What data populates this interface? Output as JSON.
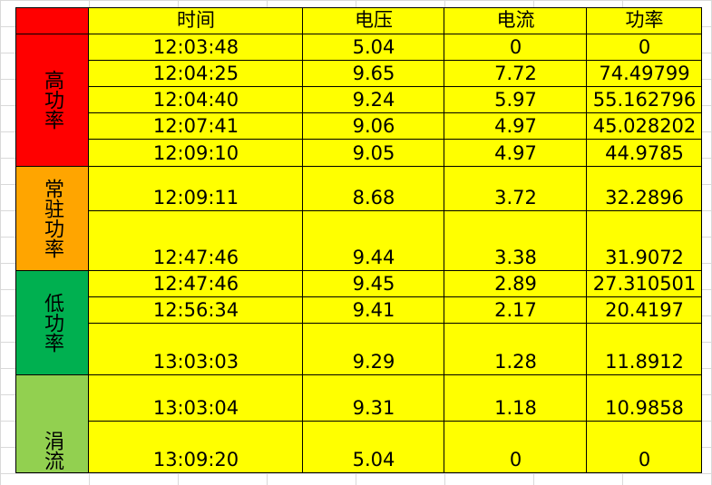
{
  "headers": [
    "时间",
    "电压",
    "电流",
    "功率"
  ],
  "groups": [
    {
      "label": "高功率",
      "color": "#ff0000"
    },
    {
      "label": "常驻功率",
      "color": "#ffa500"
    },
    {
      "label": "低功率",
      "color": "#00b050"
    },
    {
      "label": "涓流",
      "color": "#92d050"
    }
  ],
  "rows": [
    {
      "time": "12:03:48",
      "voltage": "5.04",
      "current": "0",
      "power": "0"
    },
    {
      "time": "12:04:25",
      "voltage": "9.65",
      "current": "7.72",
      "power": "74.49799"
    },
    {
      "time": "12:04:40",
      "voltage": "9.24",
      "current": "5.97",
      "power": "55.162796"
    },
    {
      "time": "12:07:41",
      "voltage": "9.06",
      "current": "4.97",
      "power": "45.028202"
    },
    {
      "time": "12:09:10",
      "voltage": "9.05",
      "current": "4.97",
      "power": "44.9785"
    },
    {
      "time": "12:09:11",
      "voltage": "8.68",
      "current": "3.72",
      "power": "32.2896"
    },
    {
      "time": "12:47:46",
      "voltage": "9.44",
      "current": "3.38",
      "power": "31.9072"
    },
    {
      "time": "12:47:46",
      "voltage": "9.45",
      "current": "2.89",
      "power": "27.310501"
    },
    {
      "time": "12:56:34",
      "voltage": "9.41",
      "current": "2.17",
      "power": "20.4197"
    },
    {
      "time": "13:03:03",
      "voltage": "9.29",
      "current": "1.28",
      "power": "11.8912"
    },
    {
      "time": "13:03:04",
      "voltage": "9.31",
      "current": "1.18",
      "power": "10.9858"
    },
    {
      "time": "13:09:20",
      "voltage": "5.04",
      "current": "0",
      "power": "0"
    }
  ]
}
